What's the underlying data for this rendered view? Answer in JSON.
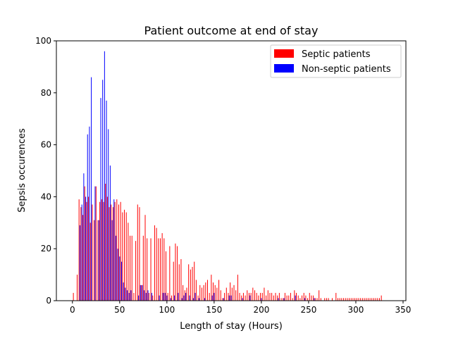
{
  "chart_data": {
    "type": "bar",
    "title": "Patient outcome at end of stay",
    "xlabel": "Length of stay (Hours)",
    "ylabel": "Sepsis occurences",
    "xlim": [
      -17,
      353
    ],
    "ylim": [
      0,
      100
    ],
    "xticks": [
      0,
      50,
      100,
      150,
      200,
      250,
      300,
      350
    ],
    "yticks": [
      0,
      20,
      40,
      60,
      80,
      100
    ],
    "grid": false,
    "legend_position": "top-right",
    "series": [
      {
        "name": "Septic patients",
        "color": "#ff0000",
        "points": [
          [
            1,
            3
          ],
          [
            5,
            10
          ],
          [
            7,
            39
          ],
          [
            9,
            36
          ],
          [
            11,
            33
          ],
          [
            13,
            44
          ],
          [
            15,
            38
          ],
          [
            17,
            40
          ],
          [
            19,
            30
          ],
          [
            21,
            37
          ],
          [
            23,
            31
          ],
          [
            25,
            44
          ],
          [
            27,
            31
          ],
          [
            29,
            38
          ],
          [
            31,
            39
          ],
          [
            33,
            38
          ],
          [
            35,
            45
          ],
          [
            37,
            40
          ],
          [
            39,
            36
          ],
          [
            41,
            37
          ],
          [
            43,
            36
          ],
          [
            45,
            38
          ],
          [
            47,
            39
          ],
          [
            49,
            37
          ],
          [
            51,
            38
          ],
          [
            53,
            34
          ],
          [
            55,
            35
          ],
          [
            57,
            34
          ],
          [
            59,
            30
          ],
          [
            61,
            25
          ],
          [
            63,
            25
          ],
          [
            65,
            3
          ],
          [
            67,
            23
          ],
          [
            69,
            37
          ],
          [
            71,
            36
          ],
          [
            73,
            6
          ],
          [
            75,
            25
          ],
          [
            77,
            33
          ],
          [
            79,
            24
          ],
          [
            81,
            3
          ],
          [
            83,
            24
          ],
          [
            85,
            2
          ],
          [
            87,
            29
          ],
          [
            89,
            28
          ],
          [
            91,
            24
          ],
          [
            93,
            24
          ],
          [
            95,
            26
          ],
          [
            97,
            24
          ],
          [
            99,
            19
          ],
          [
            101,
            3
          ],
          [
            103,
            21
          ],
          [
            105,
            2
          ],
          [
            107,
            15
          ],
          [
            109,
            22
          ],
          [
            111,
            21
          ],
          [
            113,
            14
          ],
          [
            115,
            16
          ],
          [
            117,
            6
          ],
          [
            119,
            4
          ],
          [
            121,
            5
          ],
          [
            123,
            14
          ],
          [
            125,
            12
          ],
          [
            127,
            13
          ],
          [
            129,
            15
          ],
          [
            131,
            8
          ],
          [
            133,
            2
          ],
          [
            135,
            6
          ],
          [
            137,
            5
          ],
          [
            139,
            6
          ],
          [
            141,
            7
          ],
          [
            143,
            8
          ],
          [
            145,
            3
          ],
          [
            147,
            10
          ],
          [
            149,
            7
          ],
          [
            151,
            6
          ],
          [
            153,
            5
          ],
          [
            155,
            8
          ],
          [
            157,
            4
          ],
          [
            159,
            1
          ],
          [
            161,
            3
          ],
          [
            163,
            5
          ],
          [
            165,
            3
          ],
          [
            167,
            7
          ],
          [
            169,
            5
          ],
          [
            171,
            6
          ],
          [
            173,
            4
          ],
          [
            175,
            10
          ],
          [
            177,
            3
          ],
          [
            179,
            2
          ],
          [
            181,
            3
          ],
          [
            183,
            2
          ],
          [
            185,
            4
          ],
          [
            187,
            3
          ],
          [
            189,
            3
          ],
          [
            191,
            5
          ],
          [
            193,
            4
          ],
          [
            195,
            3
          ],
          [
            197,
            2
          ],
          [
            199,
            3
          ],
          [
            201,
            3
          ],
          [
            203,
            5
          ],
          [
            205,
            2
          ],
          [
            207,
            4
          ],
          [
            209,
            3
          ],
          [
            211,
            3
          ],
          [
            213,
            2
          ],
          [
            215,
            3
          ],
          [
            217,
            2
          ],
          [
            219,
            3
          ],
          [
            221,
            1
          ],
          [
            223,
            1
          ],
          [
            225,
            3
          ],
          [
            227,
            2
          ],
          [
            229,
            2
          ],
          [
            231,
            3
          ],
          [
            233,
            1
          ],
          [
            235,
            4
          ],
          [
            237,
            3
          ],
          [
            239,
            2
          ],
          [
            241,
            1
          ],
          [
            243,
            2
          ],
          [
            245,
            3
          ],
          [
            247,
            2
          ],
          [
            249,
            1
          ],
          [
            251,
            3
          ],
          [
            253,
            2
          ],
          [
            255,
            2
          ],
          [
            257,
            1
          ],
          [
            259,
            1
          ],
          [
            261,
            4
          ],
          [
            263,
            1
          ],
          [
            267,
            1
          ],
          [
            269,
            1
          ],
          [
            271,
            1
          ],
          [
            275,
            1
          ],
          [
            279,
            3
          ],
          [
            281,
            1
          ],
          [
            283,
            1
          ],
          [
            285,
            1
          ],
          [
            287,
            1
          ],
          [
            289,
            1
          ],
          [
            291,
            1
          ],
          [
            293,
            1
          ],
          [
            295,
            1
          ],
          [
            297,
            1
          ],
          [
            299,
            1
          ],
          [
            301,
            1
          ],
          [
            303,
            1
          ],
          [
            305,
            1
          ],
          [
            307,
            1
          ],
          [
            309,
            1
          ],
          [
            311,
            1
          ],
          [
            313,
            1
          ],
          [
            315,
            1
          ],
          [
            317,
            1
          ],
          [
            319,
            1
          ],
          [
            321,
            1
          ],
          [
            323,
            1
          ],
          [
            325,
            1
          ],
          [
            327,
            2
          ]
        ]
      },
      {
        "name": "Non-septic patients",
        "color": "#0000ff",
        "points": [
          [
            8,
            29
          ],
          [
            10,
            37
          ],
          [
            12,
            49
          ],
          [
            14,
            40
          ],
          [
            16,
            64
          ],
          [
            18,
            67
          ],
          [
            20,
            86
          ],
          [
            24,
            44
          ],
          [
            28,
            31
          ],
          [
            30,
            78
          ],
          [
            32,
            85
          ],
          [
            34,
            96
          ],
          [
            36,
            77
          ],
          [
            38,
            66
          ],
          [
            40,
            52
          ],
          [
            42,
            31
          ],
          [
            44,
            39
          ],
          [
            46,
            25
          ],
          [
            48,
            20
          ],
          [
            50,
            17
          ],
          [
            52,
            15
          ],
          [
            54,
            7
          ],
          [
            56,
            5
          ],
          [
            58,
            4
          ],
          [
            60,
            3
          ],
          [
            62,
            4
          ],
          [
            70,
            2
          ],
          [
            72,
            6
          ],
          [
            74,
            6
          ],
          [
            76,
            4
          ],
          [
            78,
            3
          ],
          [
            80,
            4
          ],
          [
            84,
            3
          ],
          [
            92,
            2
          ],
          [
            96,
            3
          ],
          [
            98,
            3
          ],
          [
            100,
            2
          ],
          [
            104,
            1
          ],
          [
            108,
            2
          ],
          [
            112,
            3
          ],
          [
            116,
            1
          ],
          [
            118,
            2
          ],
          [
            120,
            3
          ],
          [
            124,
            2
          ],
          [
            128,
            1
          ],
          [
            130,
            3
          ],
          [
            134,
            1
          ],
          [
            140,
            1
          ],
          [
            148,
            2
          ],
          [
            150,
            3
          ],
          [
            160,
            1
          ],
          [
            166,
            2
          ],
          [
            168,
            2
          ],
          [
            180,
            1
          ],
          [
            188,
            2
          ],
          [
            200,
            1
          ],
          [
            218,
            1
          ],
          [
            224,
            1
          ],
          [
            236,
            2
          ],
          [
            246,
            1
          ],
          [
            256,
            1
          ]
        ]
      }
    ]
  }
}
